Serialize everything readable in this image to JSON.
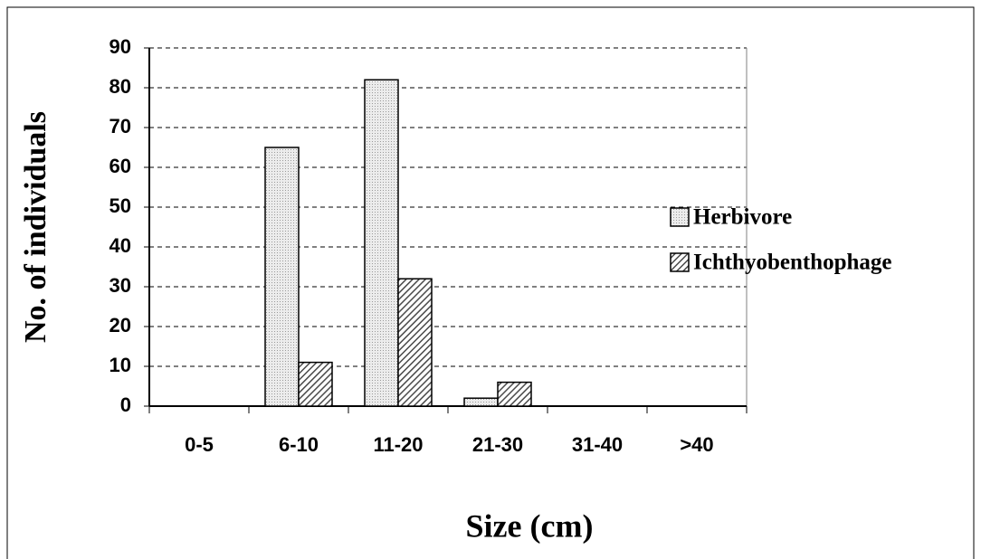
{
  "chart_data": {
    "type": "bar",
    "xlabel": "Size (cm)",
    "ylabel": "No. of individuals",
    "categories": [
      "0-5",
      "6-10",
      "11-20",
      "21-30",
      "31-40",
      ">40"
    ],
    "series": [
      {
        "name": "Herbivore",
        "color": "#d4d4d4",
        "pattern": "dots",
        "values": [
          0,
          65,
          82,
          2,
          0,
          0
        ]
      },
      {
        "name": "Ichthyobenthophage",
        "color": "#4a4a4a",
        "pattern": "hatch",
        "values": [
          0,
          11,
          32,
          6,
          0,
          0
        ]
      }
    ],
    "ylim": [
      0,
      90
    ],
    "yticks": [
      0,
      10,
      20,
      30,
      40,
      50,
      60,
      70,
      80,
      90
    ],
    "grid": true,
    "legend": "right"
  }
}
